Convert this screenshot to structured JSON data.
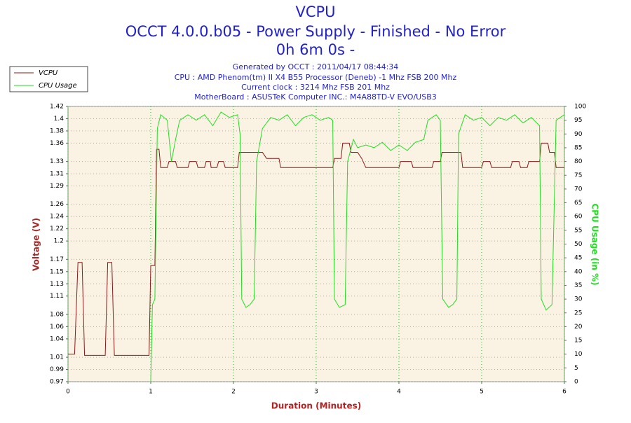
{
  "chart_data": {
    "type": "line",
    "title": "VCPU",
    "subtitle": [
      "OCCT 4.0.0.b05 - Power Supply - Finished - No Error",
      "0h 6m 0s -"
    ],
    "info": [
      "Generated by OCCT : 2011/04/17 08:44:34",
      "CPU : AMD Phenom(tm) II X4 B55 Processor (Deneb) -1 Mhz FSB 200 Mhz",
      "Current clock : 3214 Mhz FSB 201 Mhz",
      "MotherBoard : ASUSTeK Computer INC.: M4A88TD-V EVO/USB3"
    ],
    "xlabel": "Duration (Minutes)",
    "ylabel": "Voltage (V)",
    "y2label": "CPU Usage (in %)",
    "xlim": [
      0,
      6
    ],
    "xticks": [
      0,
      1,
      2,
      3,
      4,
      5,
      6
    ],
    "ylim": [
      0.97,
      1.42
    ],
    "yticks": [
      0.97,
      0.99,
      1.01,
      1.04,
      1.06,
      1.08,
      1.11,
      1.13,
      1.15,
      1.17,
      1.2,
      1.22,
      1.24,
      1.26,
      1.29,
      1.31,
      1.33,
      1.36,
      1.38,
      1.4,
      1.42
    ],
    "y2lim": [
      0,
      100
    ],
    "y2ticks": [
      0,
      5,
      10,
      15,
      20,
      25,
      30,
      35,
      40,
      45,
      50,
      55,
      60,
      65,
      70,
      75,
      80,
      85,
      90,
      95,
      100
    ],
    "grid": true,
    "legend": "top-left",
    "series": [
      {
        "name": "VCPU",
        "color": "#8b1a1a",
        "x": [
          0,
          0.08,
          0.12,
          0.17,
          0.2,
          0.45,
          0.48,
          0.53,
          0.56,
          0.98,
          1.0,
          1.05,
          1.07,
          1.1,
          1.12,
          1.2,
          1.22,
          1.3,
          1.32,
          1.45,
          1.47,
          1.55,
          1.57,
          1.65,
          1.67,
          1.72,
          1.73,
          1.8,
          1.82,
          1.88,
          1.9,
          2.05,
          2.07,
          2.35,
          2.4,
          2.55,
          2.57,
          3.2,
          3.22,
          3.3,
          3.32,
          3.4,
          3.42,
          3.5,
          3.55,
          3.6,
          4.0,
          4.02,
          4.15,
          4.17,
          4.4,
          4.42,
          4.5,
          4.52,
          4.75,
          4.77,
          5.0,
          5.02,
          5.1,
          5.12,
          5.35,
          5.37,
          5.45,
          5.47,
          5.55,
          5.57,
          5.7,
          5.72,
          5.8,
          5.82,
          5.88,
          5.9,
          6.0
        ],
        "values": [
          1.015,
          1.015,
          1.165,
          1.165,
          1.013,
          1.013,
          1.165,
          1.165,
          1.013,
          1.013,
          1.16,
          1.16,
          1.35,
          1.35,
          1.32,
          1.32,
          1.33,
          1.33,
          1.32,
          1.32,
          1.33,
          1.33,
          1.32,
          1.32,
          1.33,
          1.33,
          1.32,
          1.32,
          1.33,
          1.33,
          1.32,
          1.32,
          1.345,
          1.345,
          1.335,
          1.335,
          1.32,
          1.32,
          1.335,
          1.335,
          1.36,
          1.36,
          1.345,
          1.345,
          1.335,
          1.32,
          1.32,
          1.33,
          1.33,
          1.32,
          1.32,
          1.33,
          1.33,
          1.345,
          1.345,
          1.32,
          1.32,
          1.33,
          1.33,
          1.32,
          1.32,
          1.33,
          1.33,
          1.32,
          1.32,
          1.33,
          1.33,
          1.36,
          1.36,
          1.345,
          1.345,
          1.32,
          1.32
        ]
      },
      {
        "name": "CPU Usage",
        "color": "#22dd22",
        "axis": "y2",
        "x": [
          1.0,
          1.02,
          1.05,
          1.08,
          1.12,
          1.2,
          1.25,
          1.3,
          1.35,
          1.45,
          1.55,
          1.65,
          1.75,
          1.85,
          1.95,
          2.05,
          2.08,
          2.1,
          2.15,
          2.2,
          2.25,
          2.28,
          2.35,
          2.45,
          2.55,
          2.65,
          2.75,
          2.85,
          2.95,
          3.05,
          3.15,
          3.2,
          3.22,
          3.28,
          3.35,
          3.38,
          3.45,
          3.5,
          3.6,
          3.7,
          3.8,
          3.9,
          4.0,
          4.1,
          4.2,
          4.3,
          4.35,
          4.45,
          4.5,
          4.53,
          4.6,
          4.65,
          4.7,
          4.72,
          4.8,
          4.9,
          5.0,
          5.1,
          5.2,
          5.3,
          5.4,
          5.5,
          5.6,
          5.7,
          5.72,
          5.78,
          5.85,
          5.9,
          6.0
        ],
        "values": [
          0,
          28,
          30,
          92,
          97,
          95,
          80,
          88,
          95,
          97,
          95,
          97,
          93,
          98,
          96,
          97,
          90,
          30,
          27,
          28,
          30,
          80,
          92,
          96,
          95,
          97,
          93,
          96,
          97,
          95,
          96,
          95,
          30,
          27,
          28,
          80,
          88,
          85,
          86,
          85,
          87,
          84,
          86,
          84,
          87,
          88,
          95,
          97,
          95,
          30,
          27,
          28,
          30,
          90,
          97,
          95,
          96,
          93,
          96,
          95,
          97,
          94,
          96,
          93,
          30,
          26,
          28,
          95,
          97
        ]
      }
    ]
  }
}
